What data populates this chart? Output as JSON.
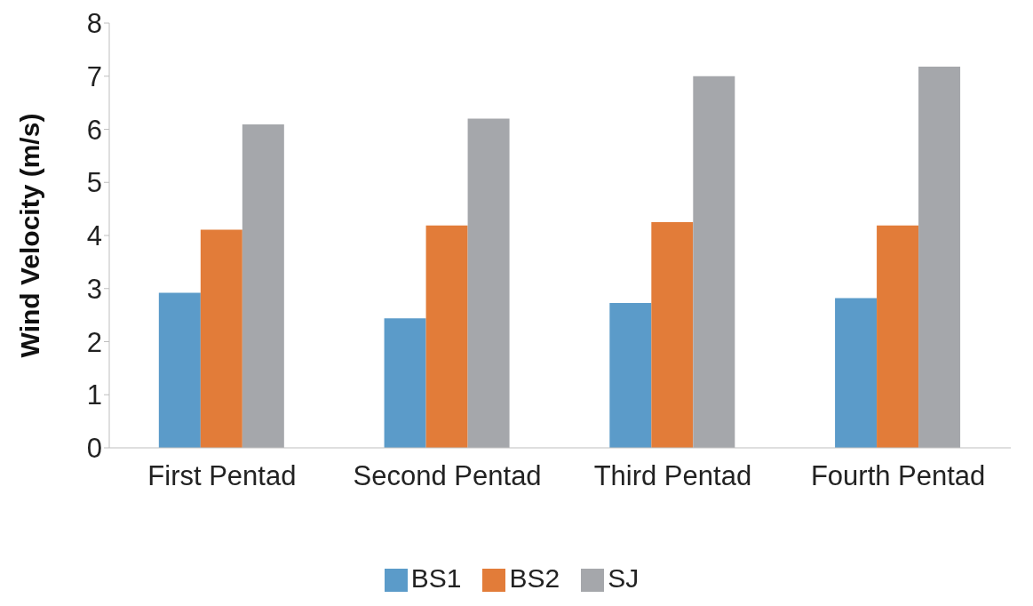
{
  "chart_data": {
    "type": "bar",
    "ylabel": "Wind Velocity (m/s)",
    "categories": [
      "First Pentad",
      "Second Pentad",
      "Third Pentad",
      "Fourth Pentad"
    ],
    "series": [
      {
        "name": "BS1",
        "color": "#5b9bc9",
        "values": [
          2.92,
          2.44,
          2.73,
          2.82
        ]
      },
      {
        "name": "BS2",
        "color": "#e27c39",
        "values": [
          4.11,
          4.19,
          4.25,
          4.19
        ]
      },
      {
        "name": "SJ",
        "color": "#a5a7ab",
        "values": [
          6.09,
          6.2,
          7.0,
          7.18
        ]
      }
    ],
    "ylim": [
      0,
      8
    ],
    "yticks": [
      0,
      1,
      2,
      3,
      4,
      5,
      6,
      7,
      8
    ],
    "grid": false,
    "legend": "bottom"
  }
}
